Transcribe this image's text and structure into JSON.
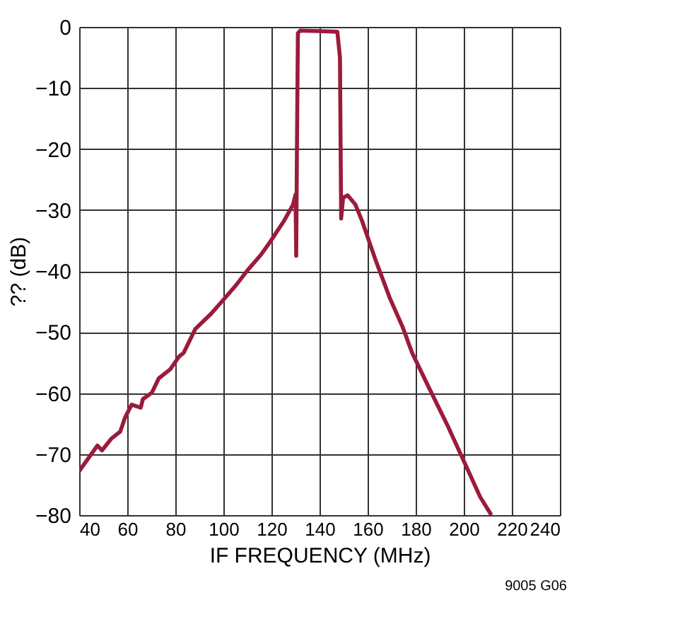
{
  "chart_data": {
    "type": "line",
    "xlabel": "IF FREQUENCY (MHz)",
    "ylabel": "?? (dB)",
    "x": [
      40,
      47.6,
      49.5,
      53.3,
      57.1,
      59,
      61.8,
      65.6,
      66.5,
      70.3,
      73.1,
      77.9,
      81.6,
      83.5,
      88.3,
      94.9,
      99.6,
      105.3,
      110,
      115.7,
      119.5,
      125.2,
      129,
      130,
      130.3,
      130.6,
      131,
      132,
      140,
      147.4,
      148.5,
      149,
      149.8,
      151.7,
      154.9,
      157.7,
      163.4,
      169.1,
      174.7,
      178.5,
      186,
      193.6,
      200.2,
      206.8,
      211.5
    ],
    "series": [
      {
        "color": "#9b1b3b",
        "values": [
          -72.8,
          -68.6,
          -69.4,
          -67.5,
          -66.3,
          -64.1,
          -61.9,
          -62.4,
          -61,
          -59.9,
          -57.6,
          -56.1,
          -54,
          -53.4,
          -49.5,
          -47,
          -44.9,
          -42.3,
          -39.9,
          -37.3,
          -35.2,
          -31.8,
          -29.1,
          -27.5,
          -37.5,
          -20,
          -1,
          -0.6,
          -0.7,
          -0.8,
          -5,
          -31.4,
          -28,
          -27.6,
          -29.1,
          -31.8,
          -38.3,
          -44.3,
          -49.3,
          -53.4,
          -59.5,
          -65.6,
          -71.3,
          -77,
          -80
        ]
      }
    ],
    "xlim": [
      40,
      240
    ],
    "xticks": [
      40,
      60,
      80,
      100,
      120,
      140,
      160,
      180,
      200,
      220,
      240
    ],
    "ylim": [
      -80,
      0
    ],
    "yticks": [
      -80,
      -70,
      -60,
      -50,
      -40,
      -30,
      -20,
      -10,
      0
    ],
    "grid": true,
    "marker": "none",
    "line_style": "solid",
    "annotations": [
      "9005 G06"
    ]
  }
}
